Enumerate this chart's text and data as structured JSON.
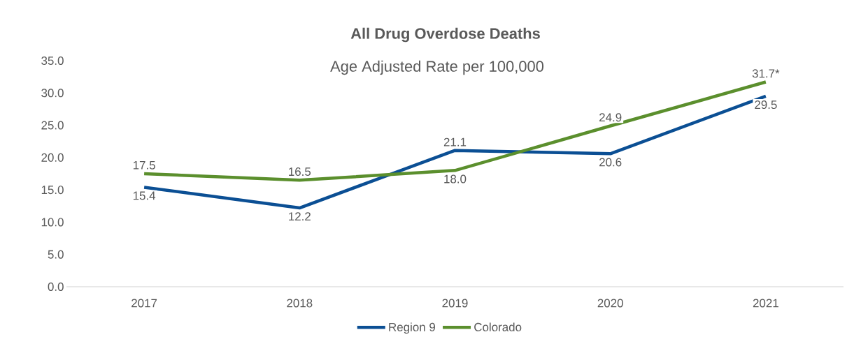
{
  "chart_data": {
    "type": "line",
    "title": "All Drug Overdose Deaths",
    "subtitle": "Age Adjusted Rate per 100,000",
    "categories": [
      "2017",
      "2018",
      "2019",
      "2020",
      "2021"
    ],
    "series": [
      {
        "name": "Region 9",
        "color": "#0b4f94",
        "values": [
          15.4,
          12.2,
          21.1,
          20.6,
          29.5
        ],
        "value_labels": [
          "15.4",
          "12.2",
          "21.1",
          "20.6",
          "29.5"
        ]
      },
      {
        "name": "Colorado",
        "color": "#5b8f2d",
        "values": [
          17.5,
          16.5,
          18.0,
          24.9,
          31.7
        ],
        "value_labels": [
          "17.5",
          "16.5",
          "18.0",
          "24.9",
          "31.7*"
        ]
      }
    ],
    "ylim": [
      0,
      35
    ],
    "yticks": [
      {
        "value": 0,
        "label": "0.0"
      },
      {
        "value": 5,
        "label": "5.0"
      },
      {
        "value": 10,
        "label": "10.0"
      },
      {
        "value": 15,
        "label": "15.0"
      },
      {
        "value": 20,
        "label": "20.0"
      },
      {
        "value": 25,
        "label": "25.0"
      },
      {
        "value": 30,
        "label": "30.0"
      },
      {
        "value": 35,
        "label": "35.0"
      }
    ],
    "grid": false,
    "legend": "bottom",
    "marker": "none",
    "line_style": "solid"
  }
}
